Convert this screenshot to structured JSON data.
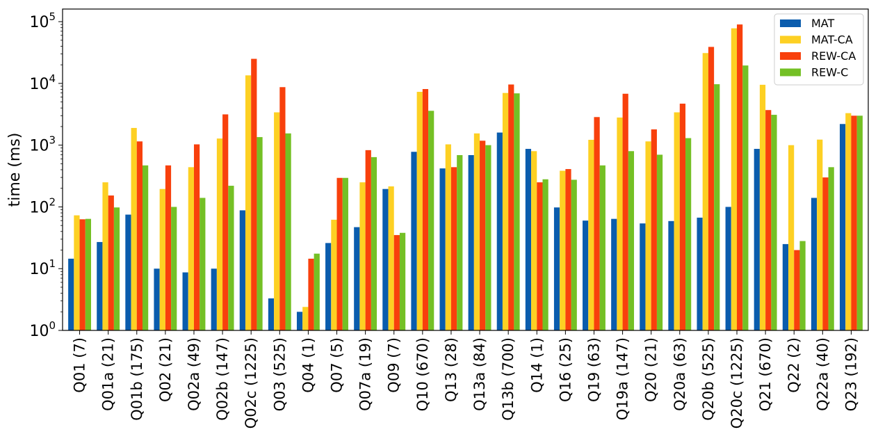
{
  "chart_data": {
    "type": "bar",
    "ylabel": "time (ms)",
    "xlabel": "",
    "yscale": "log",
    "ylim": [
      1,
      160000
    ],
    "yticks": [
      {
        "value": 1,
        "base": "10",
        "exp": "0"
      },
      {
        "value": 10,
        "base": "10",
        "exp": "1"
      },
      {
        "value": 100,
        "base": "10",
        "exp": "2"
      },
      {
        "value": 1000,
        "base": "10",
        "exp": "3"
      },
      {
        "value": 10000,
        "base": "10",
        "exp": "4"
      },
      {
        "value": 100000,
        "base": "10",
        "exp": "5"
      }
    ],
    "legend_position": "top-right",
    "grid": false,
    "categories": [
      "Q01 (7)",
      "Q01a (21)",
      "Q01b (175)",
      "Q02 (21)",
      "Q02a (49)",
      "Q02b (147)",
      "Q02c (1225)",
      "Q03 (525)",
      "Q04 (1)",
      "Q07 (5)",
      "Q07a (19)",
      "Q09 (7)",
      "Q10 (670)",
      "Q13 (28)",
      "Q13a (84)",
      "Q13b (700)",
      "Q14 (1)",
      "Q16 (25)",
      "Q19 (63)",
      "Q19a (147)",
      "Q20 (21)",
      "Q20a (63)",
      "Q20b (525)",
      "Q20c (1225)",
      "Q21 (670)",
      "Q22 (2)",
      "Q22a (40)",
      "Q23 (192)"
    ],
    "series": [
      {
        "name": "MAT",
        "color": "#0a5cad",
        "values": [
          14.5,
          27,
          75,
          10,
          8.7,
          10,
          88,
          3.3,
          2,
          26,
          47,
          195,
          780,
          420,
          690,
          1600,
          870,
          98,
          60,
          64,
          54,
          59,
          67,
          100,
          870,
          25,
          140,
          2200
        ]
      },
      {
        "name": "MAT-CA",
        "color": "#fdd023",
        "values": [
          73,
          250,
          1900,
          195,
          440,
          1280,
          13500,
          3400,
          2.4,
          62,
          250,
          215,
          7300,
          1030,
          1550,
          7000,
          800,
          385,
          1220,
          2800,
          1150,
          3400,
          31000,
          78000,
          9500,
          1000,
          1230,
          3300
        ]
      },
      {
        "name": "REW-CA",
        "color": "#f8400c",
        "values": [
          63,
          153,
          1150,
          470,
          1030,
          3150,
          25000,
          8700,
          14.5,
          295,
          830,
          35,
          8100,
          440,
          1180,
          9600,
          250,
          410,
          2850,
          6800,
          1800,
          4700,
          39000,
          90000,
          3700,
          20,
          300,
          3000
        ]
      },
      {
        "name": "REW-C",
        "color": "#74c025",
        "values": [
          64,
          98,
          470,
          100,
          140,
          220,
          1350,
          1550,
          17.5,
          295,
          640,
          38,
          3600,
          690,
          1000,
          6900,
          280,
          275,
          470,
          800,
          700,
          1300,
          9700,
          19500,
          3100,
          28,
          440,
          3000
        ]
      }
    ]
  }
}
